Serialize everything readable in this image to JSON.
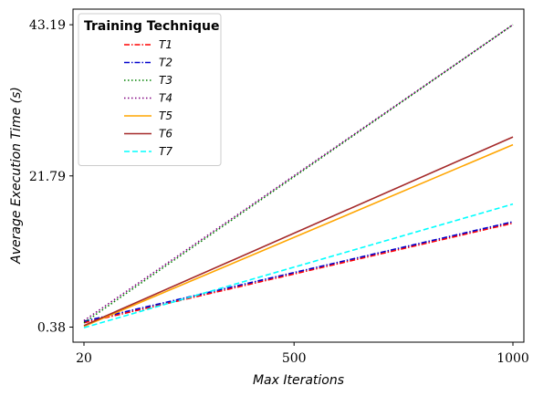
{
  "chart_data": {
    "type": "line",
    "title": "",
    "xlabel": "Max Iterations",
    "ylabel": "Average Execution Time (s)",
    "x": [
      20,
      1000
    ],
    "x_ticks": [
      "20",
      "500",
      "1000"
    ],
    "x_tick_values": [
      20,
      500,
      1000
    ],
    "y_ticks": [
      "0.38",
      "21.79",
      "43.19"
    ],
    "y_tick_values": [
      0.38,
      21.79,
      43.19
    ],
    "xlim": [
      -5,
      1025
    ],
    "ylim": [
      -1.75,
      45.4
    ],
    "grid": false,
    "legend": {
      "title": "Training Technique",
      "placement": "top-left"
    },
    "series": [
      {
        "name": "T1",
        "values": [
          1.0,
          15.1
        ],
        "color": "#ff0000",
        "dash": "dashdot"
      },
      {
        "name": "T2",
        "values": [
          1.2,
          15.3
        ],
        "color": "#0000cc",
        "dash": "dashdot"
      },
      {
        "name": "T3",
        "values": [
          1.0,
          43.19
        ],
        "color": "#008000",
        "dash": "dotted"
      },
      {
        "name": "T4",
        "values": [
          1.3,
          43.19
        ],
        "color": "#800080",
        "dash": "dotted"
      },
      {
        "name": "T5",
        "values": [
          0.5,
          26.2
        ],
        "color": "#ffa500",
        "dash": "solid"
      },
      {
        "name": "T6",
        "values": [
          0.6,
          27.3
        ],
        "color": "#a52a2a",
        "dash": "solid"
      },
      {
        "name": "T7",
        "values": [
          0.3,
          17.8
        ],
        "color": "#00ffff",
        "dash": "dashed"
      }
    ]
  }
}
